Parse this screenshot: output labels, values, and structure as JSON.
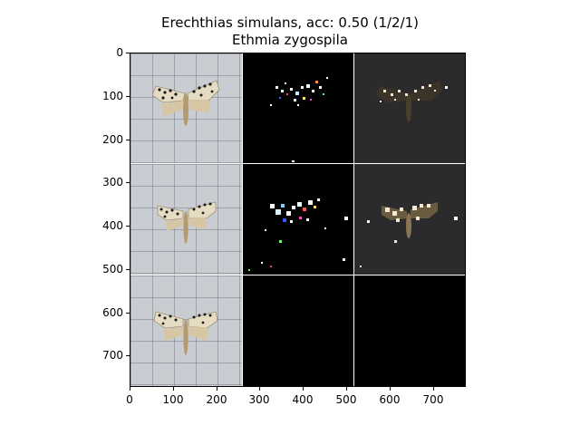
{
  "figure": {
    "title_line1": "Erechthias simulans, acc: 0.50 (1/2/1)",
    "title_line2": "Ethmia zygospila"
  },
  "axes": {
    "y_ticks": [
      "0",
      "100",
      "200",
      "300",
      "400",
      "500",
      "600",
      "700"
    ],
    "x_ticks": [
      "0",
      "100",
      "200",
      "300",
      "400",
      "500",
      "600",
      "700"
    ],
    "xlim": [
      0,
      774
    ],
    "ylim": [
      774,
      0
    ]
  },
  "panels": [
    {
      "row": 0,
      "col": 0,
      "kind": "original-photo"
    },
    {
      "row": 0,
      "col": 1,
      "kind": "saliency-map"
    },
    {
      "row": 0,
      "col": 2,
      "kind": "masked-photo"
    },
    {
      "row": 1,
      "col": 0,
      "kind": "original-photo"
    },
    {
      "row": 1,
      "col": 1,
      "kind": "saliency-map"
    },
    {
      "row": 1,
      "col": 2,
      "kind": "masked-photo"
    },
    {
      "row": 2,
      "col": 0,
      "kind": "original-photo"
    },
    {
      "row": 2,
      "col": 1,
      "kind": "blank"
    },
    {
      "row": 2,
      "col": 2,
      "kind": "blank"
    }
  ],
  "colors": {
    "background": "#ffffff",
    "grid_separator": "#ffffff",
    "photo_background": "#c9ccd0",
    "moth_wing": "#d9c9a8",
    "moth_spot": "#1a1a1a",
    "masked_background": "#2b2b2d"
  }
}
